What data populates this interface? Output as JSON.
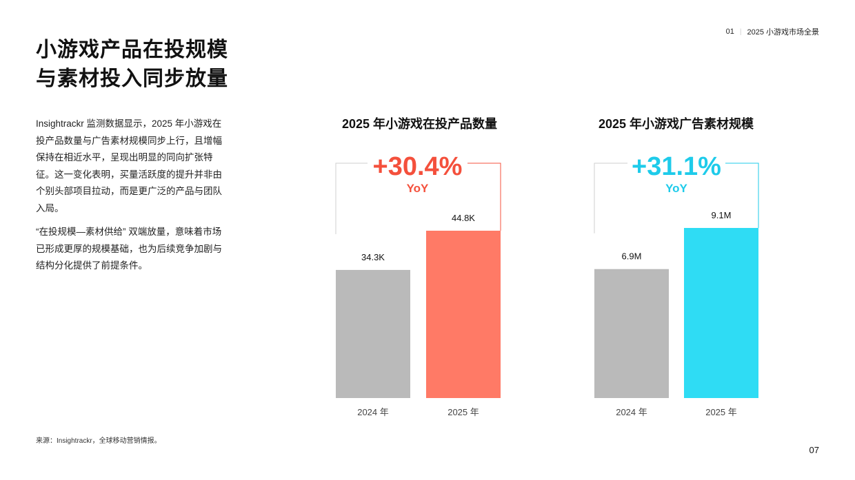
{
  "header": {
    "section_number": "01",
    "section_title": "2025 小游戏市场全景"
  },
  "title": {
    "line1": "小游戏产品在投规模",
    "line2": "与素材投入同步放量"
  },
  "body": {
    "paragraph1": "Insightrackr 监测数据显示，2025 年小游戏在投产品数量与广告素材规模同步上行，且增幅保持在相近水平，呈现出明显的同向扩张特征。这一变化表明，买量活跃度的提升并非由个别头部项目拉动，而是更广泛的产品与团队入局。",
    "paragraph2": "“在投规模—素材供给” 双端放量，意味着市场已形成更厚的规模基础，也为后续竞争加剧与结构分化提供了前提条件。"
  },
  "source": "来源：Insightrackr，全球移动营销情报。",
  "page_number": "07",
  "chart_data": [
    {
      "type": "bar",
      "title": "2025 年小游戏在投产品数量",
      "categories": [
        "2024 年",
        "2025 年"
      ],
      "values": [
        34.3,
        44.8
      ],
      "value_labels": [
        "34.3K",
        "44.8K"
      ],
      "unit": "K",
      "yoy_value": "+30.4%",
      "yoy_label": "YoY",
      "colors": [
        "#bababa",
        "#ff7a66"
      ],
      "accent": "#f4503c"
    },
    {
      "type": "bar",
      "title": "2025 年小游戏广告素材规模",
      "categories": [
        "2024 年",
        "2025 年"
      ],
      "values": [
        6.9,
        9.1
      ],
      "value_labels": [
        "6.9M",
        "9.1M"
      ],
      "unit": "M",
      "yoy_value": "+31.1%",
      "yoy_label": "YoY",
      "colors": [
        "#bababa",
        "#2fdcf4"
      ],
      "accent": "#1ecbea"
    }
  ]
}
